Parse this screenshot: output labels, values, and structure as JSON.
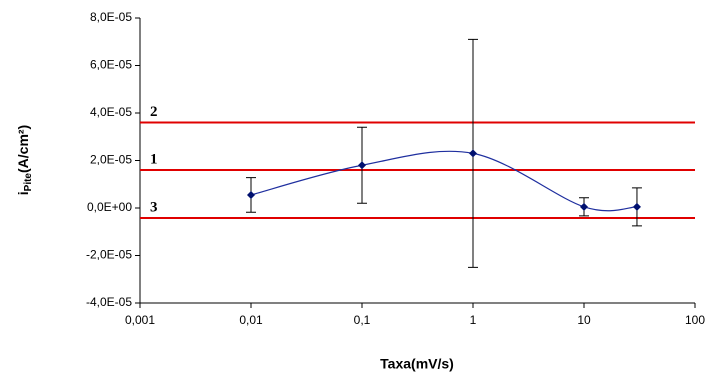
{
  "chart_data": {
    "type": "scatter",
    "xlabel": "Taxa(mV/s)",
    "ylabel": {
      "base": "i",
      "sub": "Pite",
      "unit": "(A/cm²)"
    },
    "log_x": true,
    "xlim": [
      0.001,
      100
    ],
    "xticks": [
      {
        "value": 0.001,
        "label": "0,001"
      },
      {
        "value": 0.01,
        "label": "0,01"
      },
      {
        "value": 0.1,
        "label": "0,1"
      },
      1,
      10,
      100
    ],
    "ylim": [
      -4e-05,
      8e-05
    ],
    "yticks": [
      {
        "value": -4e-05,
        "label": "-4,0E-05"
      },
      {
        "value": -2e-05,
        "label": "-2,0E-05"
      },
      {
        "value": 0,
        "label": "0,0E+00"
      },
      {
        "value": 2e-05,
        "label": "2,0E-05"
      },
      {
        "value": 4e-05,
        "label": "4,0E-05"
      },
      {
        "value": 6e-05,
        "label": "6,0E-05"
      },
      {
        "value": 8e-05,
        "label": "8,0E-05"
      }
    ],
    "x": [
      0.01,
      0.1,
      1,
      10,
      30
    ],
    "values": [
      5.5e-06,
      1.8e-05,
      2.3e-05,
      5e-07,
      5e-07
    ],
    "errors": [
      7.3e-06,
      1.6e-05,
      4.8e-05,
      3.8e-06,
      8e-06
    ],
    "color": "#1f2f9f",
    "marker_color": "#00106f",
    "smooth": true,
    "reference_lines": [
      {
        "label": "2",
        "value": 3.6e-05
      },
      {
        "label": "1",
        "value": 1.6e-05
      },
      {
        "label": "3",
        "value": -4.2e-06
      }
    ],
    "reference_color": "#e00000"
  }
}
